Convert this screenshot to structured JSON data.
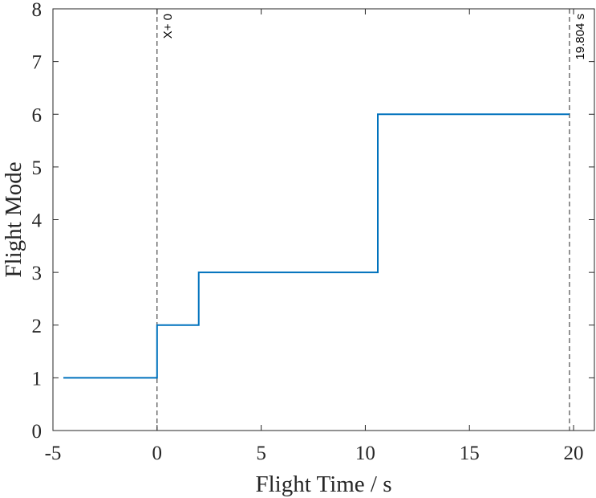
{
  "chart_data": {
    "type": "line",
    "title": "",
    "xlabel": "Flight Time / s",
    "ylabel": "Flight Mode",
    "xlim": [
      -5,
      21
    ],
    "ylim": [
      0,
      8
    ],
    "xticks": [
      -5,
      0,
      5,
      10,
      15,
      20
    ],
    "yticks": [
      0,
      1,
      2,
      3,
      4,
      5,
      6,
      7,
      8
    ],
    "grid": false,
    "line_color": "#0072BD",
    "series": [
      {
        "step": "post",
        "x": [
          -4.5,
          0,
          2,
          10.6,
          19.8
        ],
        "y": [
          1,
          2,
          3,
          6,
          6
        ]
      }
    ],
    "markers": [
      {
        "x": 0,
        "label": "X+ 0"
      },
      {
        "x": 19.804,
        "label": "19.804  s"
      }
    ]
  }
}
